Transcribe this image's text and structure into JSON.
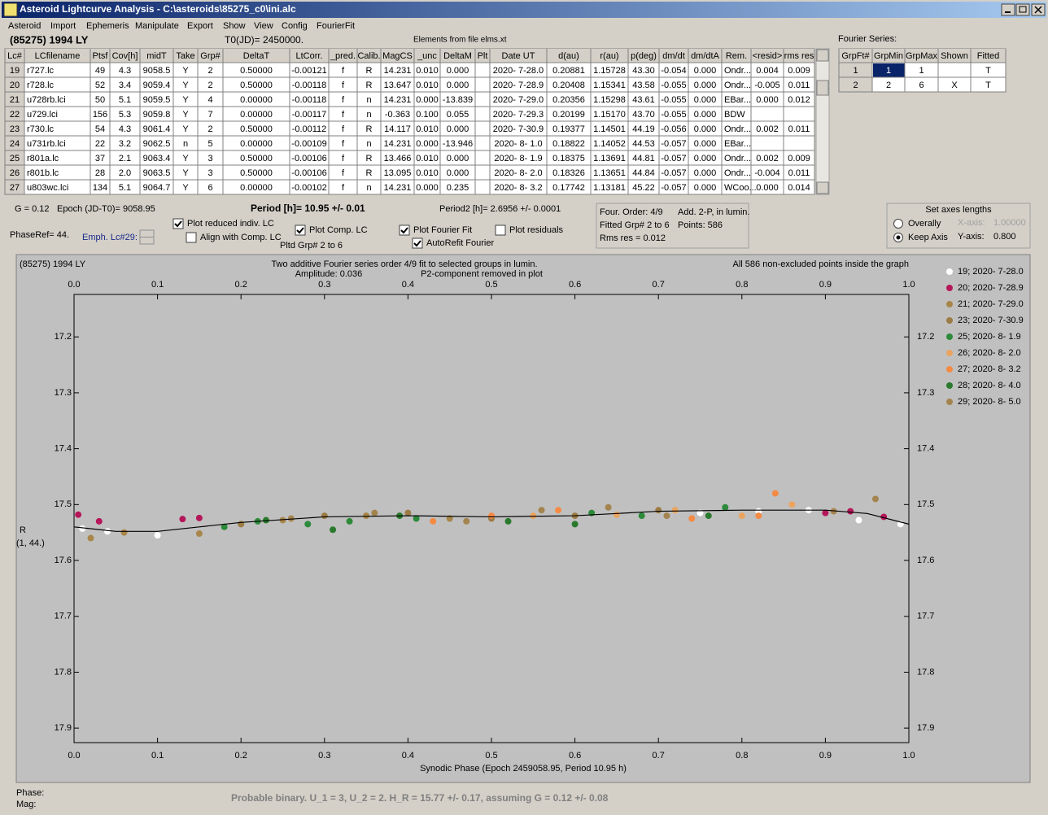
{
  "window": {
    "title": "Asteroid Lightcurve Analysis - C:\\asteroids\\85275_c0\\ini.alc"
  },
  "menu": [
    "Asteroid",
    "Import",
    "Ephemeris",
    "Manipulate",
    "Export",
    "Show",
    "View",
    "Config",
    "FourierFit"
  ],
  "header": {
    "object": "(85275) 1994 LY",
    "t0": "T0(JD)= 2450000.",
    "elements": "Elements from file elms.xt",
    "fourier_label": "Fourier Series:"
  },
  "table": {
    "columns": [
      "Lc#",
      "LCfilename",
      "Ptsf",
      "Cov[h]",
      "midT",
      "Take",
      "Grp#",
      "DeltaT",
      "LtCorr.",
      "_pred.",
      "Calib.",
      "MagCS",
      "_unc",
      "DeltaM",
      "Plt",
      "Date UT",
      "d(au)",
      "r(au)",
      "p(deg)",
      "dm/dt",
      "dm/dtA",
      "Rem.",
      "<resid>",
      "rms res"
    ],
    "rows": [
      [
        "19",
        "r727.lc",
        "49",
        "4.3",
        "9058.5",
        "Y",
        "2",
        "0.50000",
        "-0.00121",
        "f",
        "R",
        "14.231",
        "0.010",
        "0.000",
        null,
        "2020- 7-28.0",
        "0.20881",
        "1.15728",
        "43.30",
        "-0.054",
        "0.000",
        "Ondr...",
        "0.004",
        "0.009"
      ],
      [
        "20",
        "r728.lc",
        "52",
        "3.4",
        "9059.4",
        "Y",
        "2",
        "0.50000",
        "-0.00118",
        "f",
        "R",
        "13.647",
        "0.010",
        "0.000",
        null,
        "2020- 7-28.9",
        "0.20408",
        "1.15341",
        "43.58",
        "-0.055",
        "0.000",
        "Ondr...",
        "-0.005",
        "0.011"
      ],
      [
        "21",
        "u728rb.lci",
        "50",
        "5.1",
        "9059.5",
        "Y",
        "4",
        "0.00000",
        "-0.00118",
        "f",
        "n",
        "14.231",
        "0.000",
        "-13.839",
        null,
        "2020- 7-29.0",
        "0.20356",
        "1.15298",
        "43.61",
        "-0.055",
        "0.000",
        "EBar...",
        "0.000",
        "0.012"
      ],
      [
        "22",
        "u729.lci",
        "156",
        "5.3",
        "9059.8",
        "Y",
        "7",
        "0.00000",
        "-0.00117",
        "f",
        "n",
        "-0.363",
        "0.100",
        "0.055",
        null,
        "2020- 7-29.3",
        "0.20199",
        "1.15170",
        "43.70",
        "-0.055",
        "0.000",
        "BDW",
        null,
        null
      ],
      [
        "23",
        "r730.lc",
        "54",
        "4.3",
        "9061.4",
        "Y",
        "2",
        "0.50000",
        "-0.00112",
        "f",
        "R",
        "14.117",
        "0.010",
        "0.000",
        null,
        "2020- 7-30.9",
        "0.19377",
        "1.14501",
        "44.19",
        "-0.056",
        "0.000",
        "Ondr...",
        "0.002",
        "0.011"
      ],
      [
        "24",
        "u731rb.lci",
        "22",
        "3.2",
        "9062.5",
        "n",
        "5",
        "0.00000",
        "-0.00109",
        "f",
        "n",
        "14.231",
        "0.000",
        "-13.946",
        null,
        "2020- 8- 1.0",
        "0.18822",
        "1.14052",
        "44.53",
        "-0.057",
        "0.000",
        "EBar...",
        null,
        null
      ],
      [
        "25",
        "r801a.lc",
        "37",
        "2.1",
        "9063.4",
        "Y",
        "3",
        "0.50000",
        "-0.00106",
        "f",
        "R",
        "13.466",
        "0.010",
        "0.000",
        null,
        "2020- 8- 1.9",
        "0.18375",
        "1.13691",
        "44.81",
        "-0.057",
        "0.000",
        "Ondr...",
        "0.002",
        "0.009"
      ],
      [
        "26",
        "r801b.lc",
        "28",
        "2.0",
        "9063.5",
        "Y",
        "3",
        "0.50000",
        "-0.00106",
        "f",
        "R",
        "13.095",
        "0.010",
        "0.000",
        null,
        "2020- 8- 2.0",
        "0.18326",
        "1.13651",
        "44.84",
        "-0.057",
        "0.000",
        "Ondr...",
        "-0.004",
        "0.011"
      ],
      [
        "27",
        "u803wc.lci",
        "134",
        "5.1",
        "9064.7",
        "Y",
        "6",
        "0.00000",
        "-0.00102",
        "f",
        "n",
        "14.231",
        "0.000",
        "0.235",
        null,
        "2020- 8- 3.2",
        "0.17742",
        "1.13181",
        "45.22",
        "-0.057",
        "0.000",
        "WCoo...",
        "0.000",
        "0.014"
      ]
    ]
  },
  "fourier_table": {
    "columns": [
      "GrpFt#",
      "GrpMin",
      "GrpMax",
      "Shown",
      "Fitted"
    ],
    "rows": [
      [
        "1",
        "1",
        "1",
        null,
        "T"
      ],
      [
        "2",
        "2",
        "6",
        "X",
        "T"
      ]
    ]
  },
  "info": {
    "g": "G = 0.12",
    "epoch": "Epoch (JD-T0)= 9058.95",
    "period": "Period [h]= 10.95 +/- 0.01",
    "period2": "Period2 [h]= 2.6956 +/- 0.0001",
    "phaseref": "PhaseRef= 44.",
    "emph": "Emph. Lc#29:",
    "pltd": "Pltd Grp#  2   to   6"
  },
  "checkboxes": [
    {
      "label": "Plot reduced indiv. LC",
      "checked": true
    },
    {
      "label": "Align with Comp. LC",
      "checked": false
    },
    {
      "label": "Plot Comp. LC",
      "checked": true
    },
    {
      "label": "Plot Fourier Fit",
      "checked": true
    },
    {
      "label": "AutoRefit Fourier",
      "checked": true
    },
    {
      "label": "Plot residuals",
      "checked": false
    }
  ],
  "fit_box": [
    "Four. Order:  4/9",
    "Add. 2-P, in lumin.",
    "Fitted Grp# 2 to 6",
    "Points: 586",
    "Rms res     = 0.012"
  ],
  "axes_box": {
    "title": "Set axes lengths",
    "overally": "Overally",
    "keep": "Keep Axis",
    "keep_selected": true,
    "x_label": "X-axis:",
    "x_value": "1.00000",
    "y_label": "Y-axis:",
    "y_value": "0.800"
  },
  "chart_data": {
    "type": "scatter",
    "title": "(85275) 1994 LY",
    "subtitle": [
      "Two additive Fourier series order 4/9 fit to selected groups in lumin.",
      "Amplitude: 0.036"
    ],
    "note": "P2-component removed in plot",
    "note_right": "All 586 non-excluded points inside the graph",
    "y_label": "R",
    "y_sublabel": "(1, 44.)",
    "x_label": "Synodic Phase (Epoch 2459058.95, Period 10.95 h)",
    "xlim": [
      0,
      1
    ],
    "ylim": [
      17.124,
      17.926
    ],
    "y_inverted": true,
    "xticks": [
      {
        "value": 0,
        "label": "0.0"
      },
      {
        "value": 0.1,
        "label": "0.1"
      },
      {
        "value": 0.2,
        "label": "0.2"
      },
      {
        "value": 0.3,
        "label": "0.3"
      },
      {
        "value": 0.4,
        "label": "0.4"
      },
      {
        "value": 0.5,
        "label": "0.5"
      },
      {
        "value": 0.6,
        "label": "0.6"
      },
      {
        "value": 0.7,
        "label": "0.7"
      },
      {
        "value": 0.8,
        "label": "0.8"
      },
      {
        "value": 0.9,
        "label": "0.9"
      },
      {
        "value": 1,
        "label": "1.0"
      }
    ],
    "yticks": [
      17.2,
      17.3,
      17.4,
      17.5,
      17.6,
      17.7,
      17.8,
      17.9
    ],
    "series": [
      {
        "name": "19; 2020- 7-28.0",
        "color": "#ffffff",
        "x": [
          0.01,
          0.04,
          0.1,
          0.75,
          0.82,
          0.88,
          0.94,
          0.99
        ],
        "y": [
          17.543,
          17.548,
          17.555,
          17.515,
          17.512,
          17.51,
          17.528,
          17.535
        ]
      },
      {
        "name": "20; 2020- 7-28.9",
        "color": "#b5165a",
        "x": [
          0.005,
          0.03,
          0.13,
          0.15,
          0.9,
          0.93,
          0.97
        ],
        "y": [
          17.518,
          17.53,
          17.526,
          17.524,
          17.515,
          17.512,
          17.522
        ]
      },
      {
        "name": "21; 2020- 7-29.0",
        "color": "#a8864a",
        "x": [
          0.02,
          0.06,
          0.15,
          0.25,
          0.35,
          0.45
        ],
        "y": [
          17.56,
          17.55,
          17.552,
          17.528,
          17.52,
          17.525
        ]
      },
      {
        "name": "23; 2020- 7-30.9",
        "color": "#9c7c44",
        "x": [
          0.2,
          0.3,
          0.4,
          0.5,
          0.6,
          0.7
        ],
        "y": [
          17.535,
          17.52,
          17.515,
          17.525,
          17.52,
          17.51
        ]
      },
      {
        "name": "25; 2020- 8- 1.9",
        "color": "#2d8a3a",
        "x": [
          0.18,
          0.22,
          0.28,
          0.33,
          0.41,
          0.62,
          0.68,
          0.78
        ],
        "y": [
          17.54,
          17.53,
          17.535,
          17.53,
          17.525,
          17.515,
          17.52,
          17.505
        ]
      },
      {
        "name": "26; 2020- 8- 2.0",
        "color": "#eaa460",
        "x": [
          0.55,
          0.65,
          0.72,
          0.8,
          0.86
        ],
        "y": [
          17.52,
          17.518,
          17.51,
          17.52,
          17.5
        ]
      },
      {
        "name": "27; 2020- 8- 3.2",
        "color": "#f48a44",
        "x": [
          0.43,
          0.5,
          0.58,
          0.74,
          0.82,
          0.84
        ],
        "y": [
          17.53,
          17.52,
          17.51,
          17.525,
          17.52,
          17.48
        ]
      },
      {
        "name": "28; 2020- 8- 4.0",
        "color": "#2a7a2e",
        "x": [
          0.23,
          0.31,
          0.39,
          0.52,
          0.6,
          0.76
        ],
        "y": [
          17.528,
          17.545,
          17.52,
          17.53,
          17.535,
          17.52
        ]
      },
      {
        "name": "29; 2020- 8- 5.0",
        "color": "#a4844e",
        "x": [
          0.26,
          0.36,
          0.47,
          0.56,
          0.64,
          0.71,
          0.91,
          0.96
        ],
        "y": [
          17.525,
          17.515,
          17.53,
          17.51,
          17.505,
          17.52,
          17.512,
          17.49
        ]
      }
    ],
    "fit": {
      "x": [
        0,
        0.05,
        0.1,
        0.15,
        0.2,
        0.3,
        0.4,
        0.5,
        0.6,
        0.7,
        0.8,
        0.9,
        0.95,
        1
      ],
      "y": [
        17.54,
        17.548,
        17.548,
        17.54,
        17.532,
        17.522,
        17.52,
        17.522,
        17.52,
        17.512,
        17.51,
        17.51,
        17.516,
        17.535
      ]
    }
  },
  "footer": {
    "phase": "Phase:",
    "mag": "Mag:",
    "status": "Probable binary.  U_1 = 3, U_2 = 2.  H_R = 15.77 +/- 0.17, assuming G = 0.12 +/- 0.08"
  }
}
